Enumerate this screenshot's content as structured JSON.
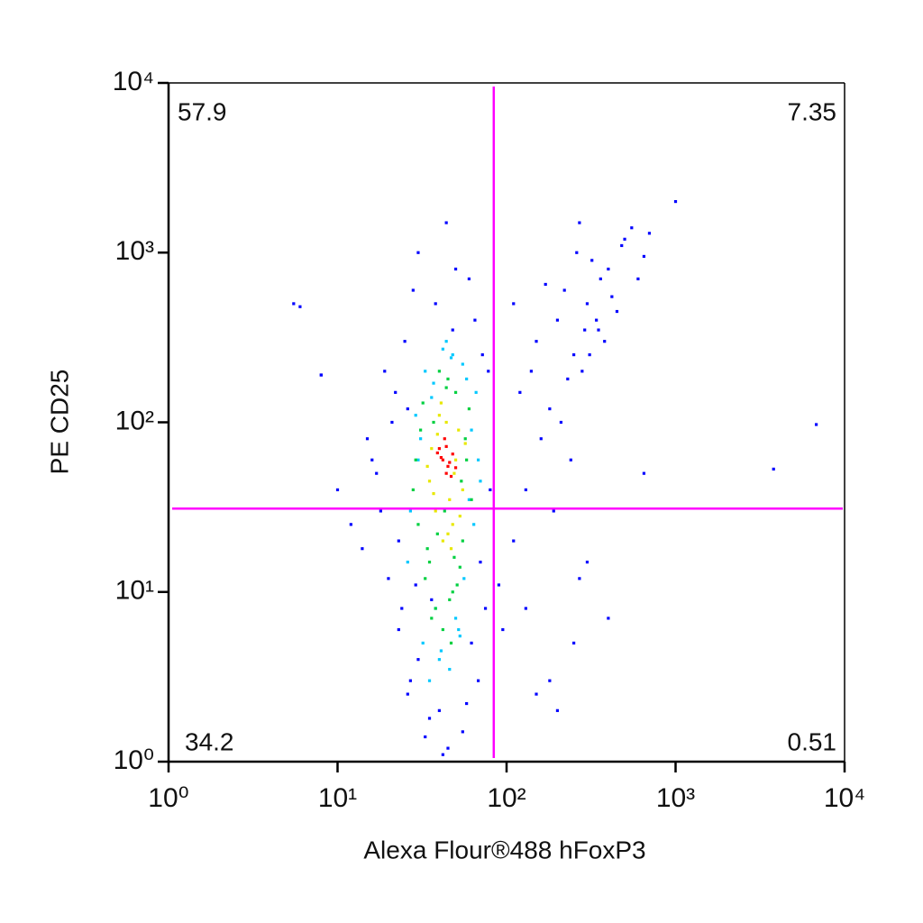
{
  "chart_data": {
    "type": "scatter",
    "x_label": "Alexa Flour®488 hFoxP3",
    "y_label": "PE CD25",
    "xscale": "log",
    "yscale": "log",
    "xlim": [
      1,
      10000
    ],
    "ylim": [
      1,
      10000
    ],
    "xticks": [
      {
        "value": 1,
        "label": "10⁰"
      },
      {
        "value": 10,
        "label": "10¹"
      },
      {
        "value": 100,
        "label": "10²"
      },
      {
        "value": 1000,
        "label": "10³"
      },
      {
        "value": 10000,
        "label": "10⁴"
      }
    ],
    "yticks": [
      {
        "value": 1,
        "label": "10⁰"
      },
      {
        "value": 10,
        "label": "10¹"
      },
      {
        "value": 100,
        "label": "10²"
      },
      {
        "value": 1000,
        "label": "10³"
      },
      {
        "value": 10000,
        "label": "10⁴"
      }
    ],
    "gate": {
      "x": 84,
      "y": 31,
      "color": "#ff00ff"
    },
    "quadrant_values": [
      57.9,
      7.35,
      34.2,
      0.51
    ],
    "series": [
      {
        "color": "#0000ff",
        "x": [
          15,
          18,
          22,
          25,
          20,
          17,
          24,
          28,
          30,
          19,
          23,
          26,
          21,
          16,
          14,
          27,
          65,
          70,
          75,
          60,
          68,
          72,
          55,
          45,
          40,
          35,
          50,
          62,
          30,
          42,
          38,
          33,
          48,
          58,
          44,
          12,
          10,
          8,
          6,
          23,
          26,
          80,
          78,
          29,
          36,
          120,
          150,
          200,
          250,
          300,
          350,
          400,
          180,
          220,
          280,
          320,
          450,
          500,
          600,
          160,
          130,
          260,
          380,
          420,
          550,
          240,
          190,
          310,
          700,
          140,
          110,
          170,
          230,
          270,
          340,
          480,
          650,
          210,
          290,
          360,
          5.5,
          8,
          3800,
          6800,
          1000,
          400,
          250,
          150,
          200,
          300,
          650,
          130,
          110,
          90,
          95,
          180,
          270
        ],
        "y": [
          80,
          30,
          150,
          300,
          12,
          50,
          8,
          600,
          4,
          200,
          20,
          2.5,
          100,
          60,
          18,
          3,
          400,
          15,
          8,
          700,
          3,
          250,
          1.5,
          1.2,
          2,
          1.8,
          800,
          5,
          1000,
          1.1,
          500,
          1.4,
          350,
          2.2,
          1500,
          25,
          40,
          190,
          480,
          6,
          120,
          40,
          200,
          11,
          9,
          150,
          300,
          400,
          250,
          500,
          350,
          800,
          120,
          600,
          200,
          900,
          450,
          1200,
          700,
          80,
          40,
          1000,
          300,
          550,
          1400,
          60,
          30,
          250,
          1300,
          200,
          500,
          650,
          180,
          1500,
          400,
          1100,
          950,
          100,
          350,
          700,
          500,
          190,
          53,
          97,
          2000,
          7,
          5,
          2.5,
          2,
          15,
          50,
          8,
          20,
          11,
          6,
          3,
          12
        ]
      },
      {
        "color": "#00c8ff",
        "x": [
          27,
          66,
          32,
          48,
          40,
          55,
          30,
          62,
          35,
          44,
          70,
          26,
          52,
          38,
          58,
          42,
          29,
          64,
          46,
          33,
          50,
          36,
          68,
          41,
          56,
          31,
          47,
          60,
          37,
          53
        ],
        "y": [
          30,
          150,
          5,
          250,
          4,
          220,
          60,
          90,
          3,
          300,
          45,
          15,
          6,
          8,
          180,
          270,
          110,
          25,
          3.5,
          200,
          7,
          140,
          60,
          4.5,
          12,
          80,
          240,
          35,
          170,
          5.5
        ]
      },
      {
        "color": "#00d040",
        "x": [
          30,
          60,
          33,
          55,
          45,
          38,
          50,
          28,
          42,
          58,
          35,
          48,
          31,
          53,
          40,
          62,
          36,
          46,
          29,
          44,
          57,
          34,
          51,
          39,
          47,
          32,
          54,
          43,
          37,
          49
        ],
        "y": [
          25,
          120,
          12,
          20,
          180,
          8,
          150,
          40,
          6,
          60,
          15,
          10,
          90,
          14,
          200,
          35,
          7,
          9,
          60,
          160,
          80,
          18,
          11,
          22,
          5,
          130,
          45,
          30,
          100,
          16
        ]
      },
      {
        "color": "#e8e800",
        "x": [
          35,
          52,
          38,
          55,
          44,
          48,
          36,
          50,
          42,
          40,
          57,
          34,
          46,
          53,
          39,
          47,
          41,
          49,
          37,
          45
        ],
        "y": [
          45,
          90,
          30,
          40,
          100,
          25,
          70,
          60,
          20,
          110,
          75,
          55,
          35,
          28,
          85,
          18,
          130,
          50,
          38,
          22
        ]
      },
      {
        "color": "#ff0000",
        "x": [
          42,
          45,
          40,
          48,
          44,
          43,
          46,
          41,
          47,
          44,
          39,
          50
        ],
        "y": [
          60,
          55,
          70,
          65,
          50,
          80,
          58,
          62,
          48,
          72,
          66,
          54
        ]
      }
    ]
  }
}
